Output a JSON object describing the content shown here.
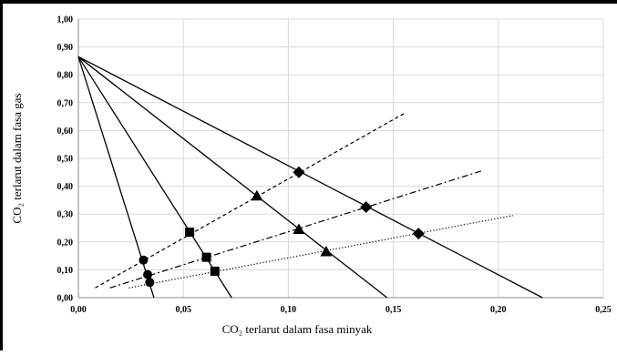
{
  "chart_data": {
    "type": "line",
    "xlabel": "CO₂ terlarut dalam fasa minyak",
    "ylabel": "CO₂ terlarut dalam fasa gas",
    "xlim": [
      0,
      0.25
    ],
    "ylim": [
      0,
      1.0
    ],
    "x_ticks": [
      "0,00",
      "0,05",
      "0,10",
      "0,15",
      "0,20",
      "0,25"
    ],
    "y_ticks": [
      "0,00",
      "0,10",
      "0,20",
      "0,30",
      "0,40",
      "0,50",
      "0,60",
      "0,70",
      "0,80",
      "0,90",
      "1,00"
    ],
    "grid": true,
    "tie_lines": [
      {
        "x": [
          0.0,
          0.036
        ],
        "y": [
          0.865,
          0.0
        ]
      },
      {
        "x": [
          0.0,
          0.073
        ],
        "y": [
          0.865,
          0.0
        ]
      },
      {
        "x": [
          0.0,
          0.147
        ],
        "y": [
          0.865,
          0.0
        ]
      },
      {
        "x": [
          0.0,
          0.221
        ],
        "y": [
          0.865,
          0.0
        ]
      }
    ],
    "operating_lines": [
      {
        "style": "dashed",
        "x": [
          0.008,
          0.156
        ],
        "y": [
          0.035,
          0.665
        ]
      },
      {
        "style": "dashdot",
        "x": [
          0.015,
          0.192
        ],
        "y": [
          0.035,
          0.455
        ]
      },
      {
        "style": "dotted",
        "x": [
          0.024,
          0.207
        ],
        "y": [
          0.035,
          0.295
        ]
      }
    ],
    "series": [
      {
        "marker": "circle",
        "x": [
          0.031,
          0.033,
          0.034
        ],
        "y": [
          0.135,
          0.083,
          0.055
        ]
      },
      {
        "marker": "square",
        "x": [
          0.053,
          0.061,
          0.065
        ],
        "y": [
          0.235,
          0.145,
          0.095
        ]
      },
      {
        "marker": "triangle",
        "x": [
          0.085,
          0.105,
          0.118
        ],
        "y": [
          0.365,
          0.245,
          0.165
        ]
      },
      {
        "marker": "diamond",
        "x": [
          0.105,
          0.137,
          0.162
        ],
        "y": [
          0.45,
          0.325,
          0.23
        ]
      }
    ]
  }
}
